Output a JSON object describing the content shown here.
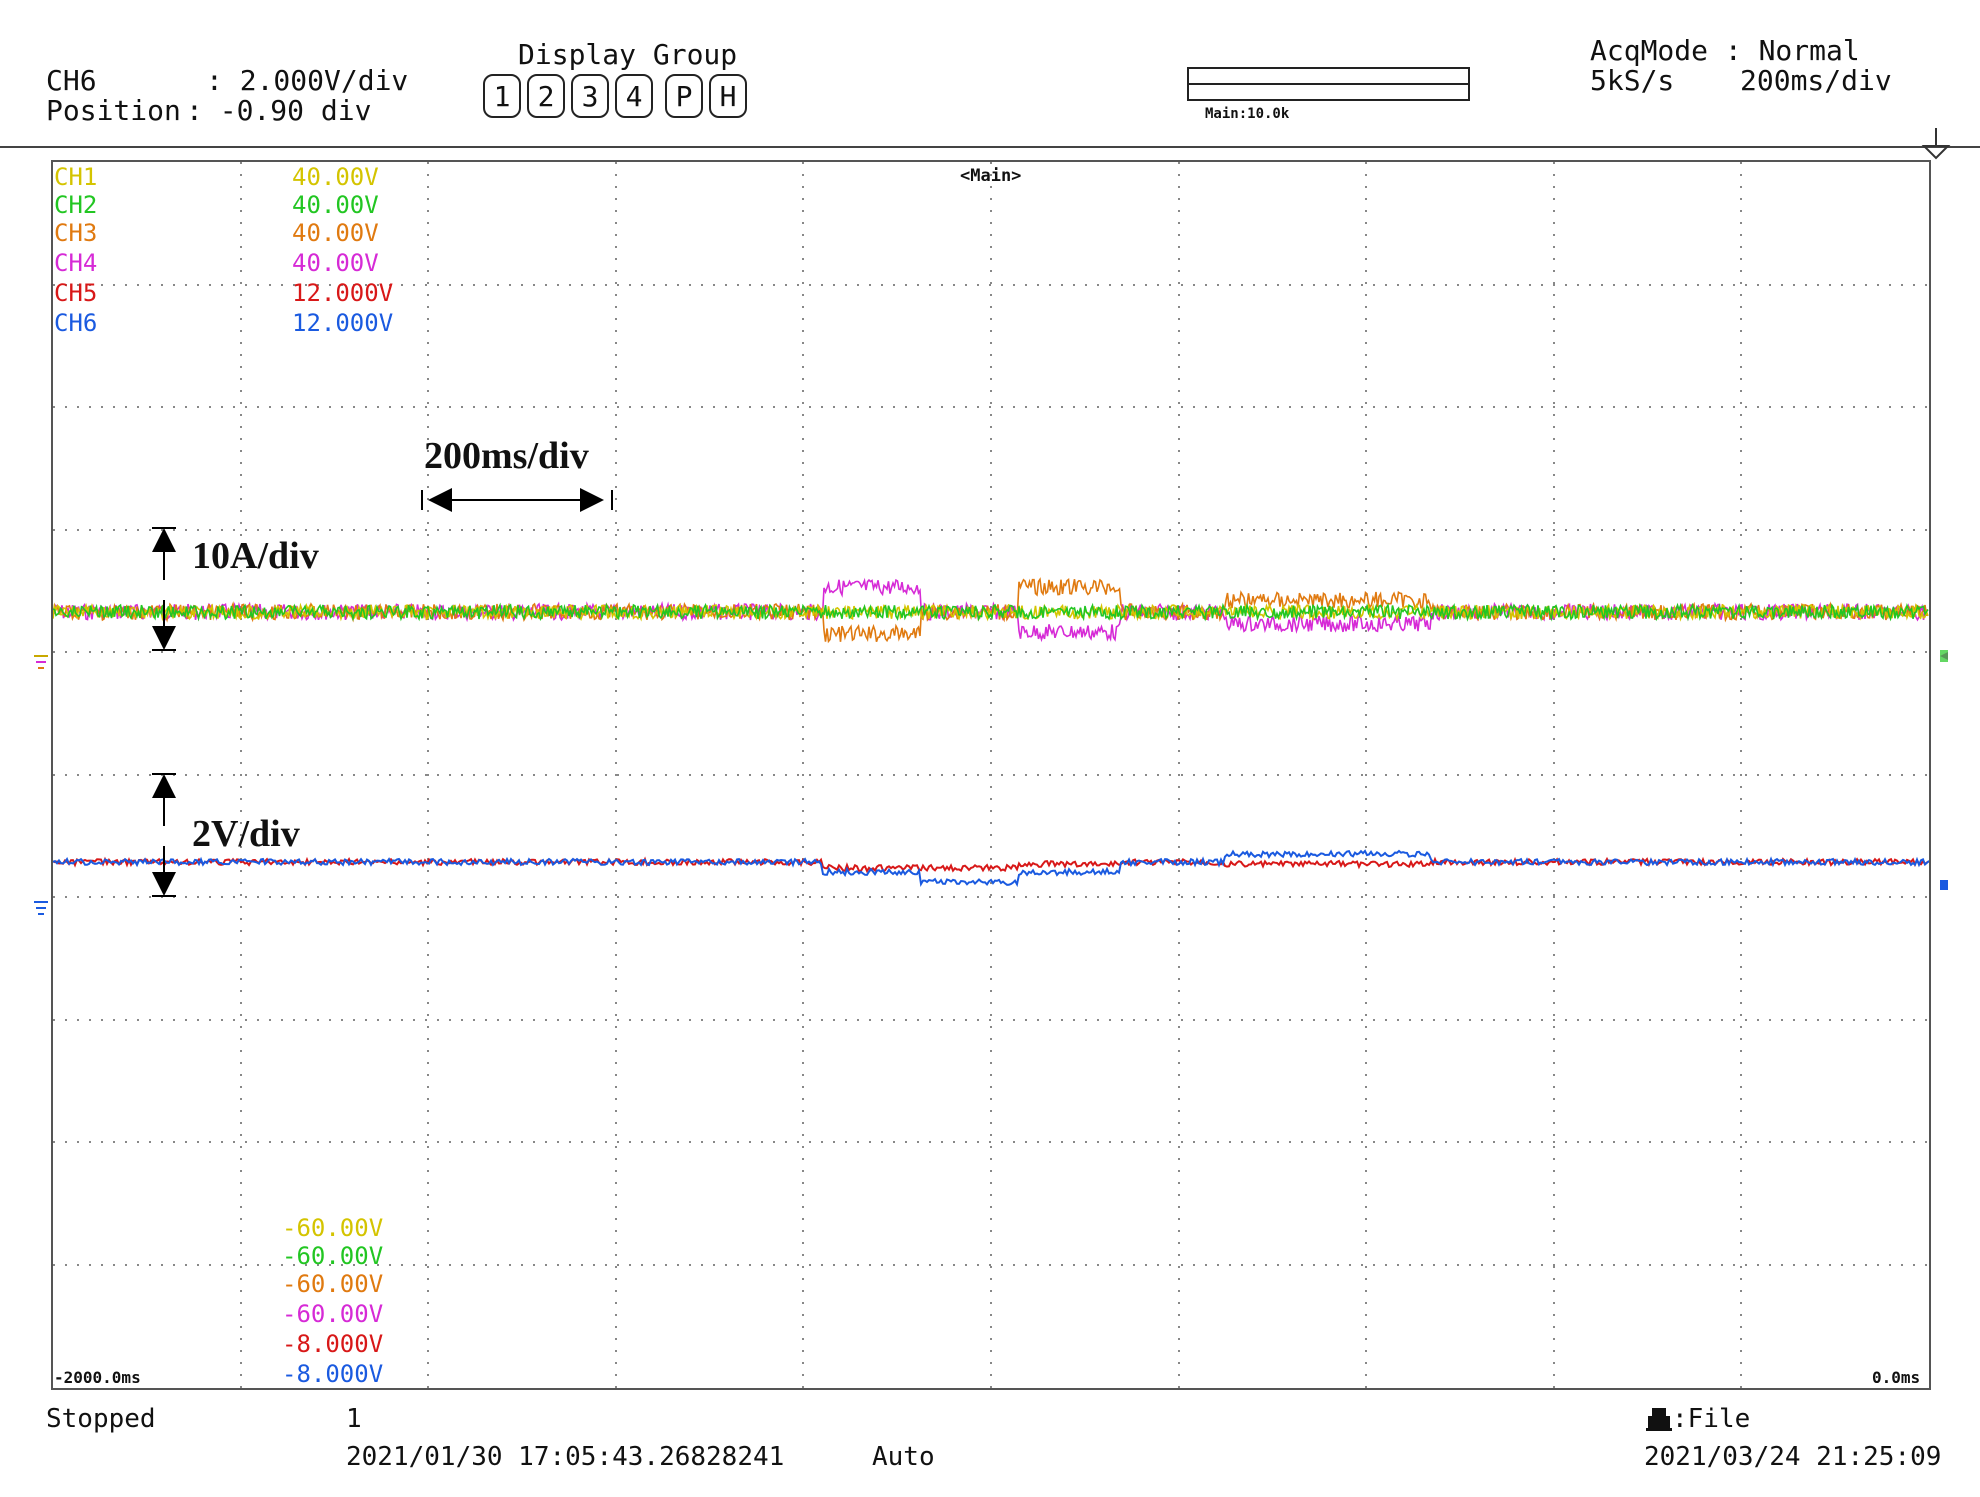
{
  "header": {
    "ch_name": "CH6",
    "ch_scale": ": 2.000V/div",
    "position_label": "Position",
    "position_value": ": -0.90 div",
    "display_group_title": "Display Group",
    "display_group_buttons": [
      "1",
      "2",
      "3",
      "4",
      "P",
      "H"
    ],
    "zoom_label": "Main:10.0k",
    "acq_label": "AcqMode : Normal",
    "sample_rate": "5kS/s",
    "time_div": "200ms/div"
  },
  "screen": {
    "main_label": "<Main>",
    "channels": [
      {
        "name": "CH1",
        "scale": "40.00V",
        "bottom": "-60.00V",
        "color": "#d4c400"
      },
      {
        "name": "CH2",
        "scale": "40.00V",
        "bottom": "-60.00V",
        "color": "#22c622"
      },
      {
        "name": "CH3",
        "scale": "40.00V",
        "bottom": "-60.00V",
        "color": "#e07a10"
      },
      {
        "name": "CH4",
        "scale": "40.00V",
        "bottom": "-60.00V",
        "color": "#d62ad6"
      },
      {
        "name": "CH5",
        "scale": "12.000V",
        "bottom": "-8.000V",
        "color": "#d81818"
      },
      {
        "name": "CH6",
        "scale": "12.000V",
        "bottom": "-8.000V",
        "color": "#1a5ae0"
      }
    ],
    "time_start": "-2000.0ms",
    "time_end": "0.0ms",
    "annotations": {
      "time_div": "200ms/div",
      "current_div": "10A/div",
      "voltage_div": "2V/div"
    }
  },
  "footer": {
    "status": "Stopped",
    "count": "1",
    "trigger_time": "2021/01/30 17:05:43.26828241",
    "trigger_mode": "Auto",
    "save_target": ":File",
    "save_time": "2021/03/24 21:25:09"
  }
}
